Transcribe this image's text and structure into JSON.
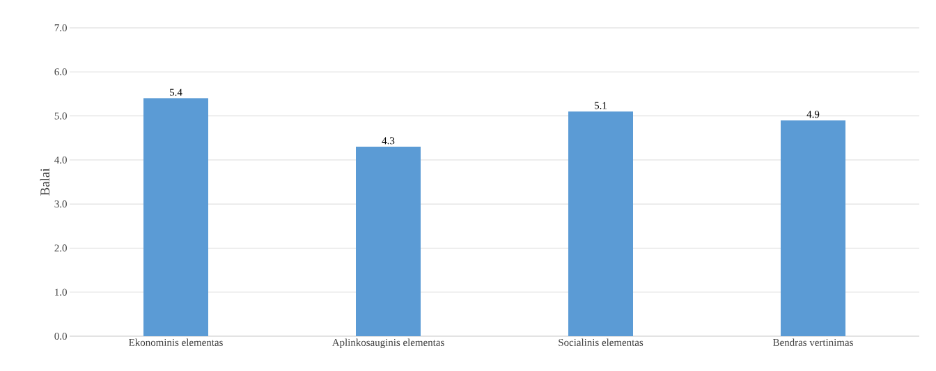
{
  "chart_data": {
    "type": "bar",
    "ylabel": "Balai",
    "categories": [
      "Ekonominis elementas",
      "Aplinkosauginis elementas",
      "Socialinis elementas",
      "Bendras vertinimas"
    ],
    "values": [
      5.4,
      4.3,
      5.1,
      4.9
    ],
    "color": "#5b9bd5",
    "data_labels": true,
    "ylim": [
      0,
      7
    ],
    "yticks": [
      {
        "value": 0,
        "label": "0.0"
      },
      {
        "value": 1,
        "label": "1.0"
      },
      {
        "value": 2,
        "label": "2.0"
      },
      {
        "value": 3,
        "label": "3.0"
      },
      {
        "value": 4,
        "label": "4.0"
      },
      {
        "value": 5,
        "label": "5.0"
      },
      {
        "value": 6,
        "label": "6.0"
      },
      {
        "value": 7,
        "label": "7.0"
      }
    ],
    "grid": "y"
  }
}
